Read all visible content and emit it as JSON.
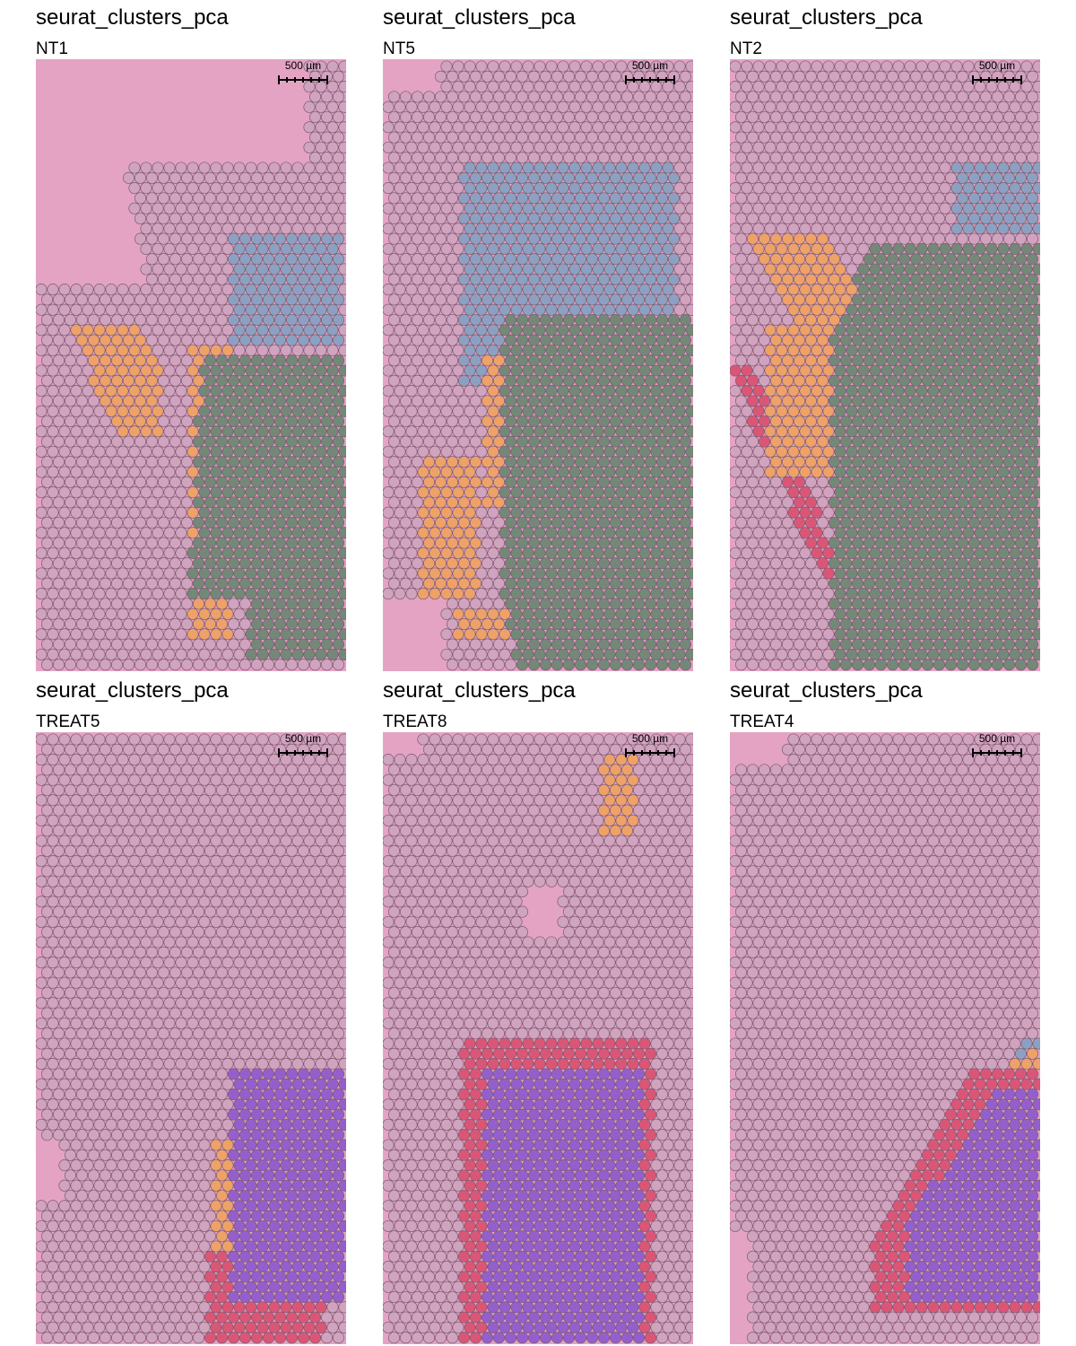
{
  "panels": [
    {
      "title": "seurat_clusters_pca",
      "sample": "NT1",
      "scale_label": "500 µm"
    },
    {
      "title": "seurat_clusters_pca",
      "sample": "NT5",
      "scale_label": "500 µm"
    },
    {
      "title": "seurat_clusters_pca",
      "sample": "NT2",
      "scale_label": "500 µm"
    },
    {
      "title": "seurat_clusters_pca",
      "sample": "TREAT5",
      "scale_label": "500 µm"
    },
    {
      "title": "seurat_clusters_pca",
      "sample": "TREAT8",
      "scale_label": "500 µm"
    },
    {
      "title": "seurat_clusters_pca",
      "sample": "TREAT4",
      "scale_label": "500 µm"
    }
  ],
  "colors": {
    "tissue": "#d66aa3",
    "background": "#f6e9ec",
    "spot_default": "#c9a3bd",
    "spot_green": "#4f7f5f",
    "spot_orange": "#f2a24a",
    "spot_blue": "#6fa0c0",
    "spot_red": "#d83c5c",
    "spot_purple": "#7a48d0"
  }
}
